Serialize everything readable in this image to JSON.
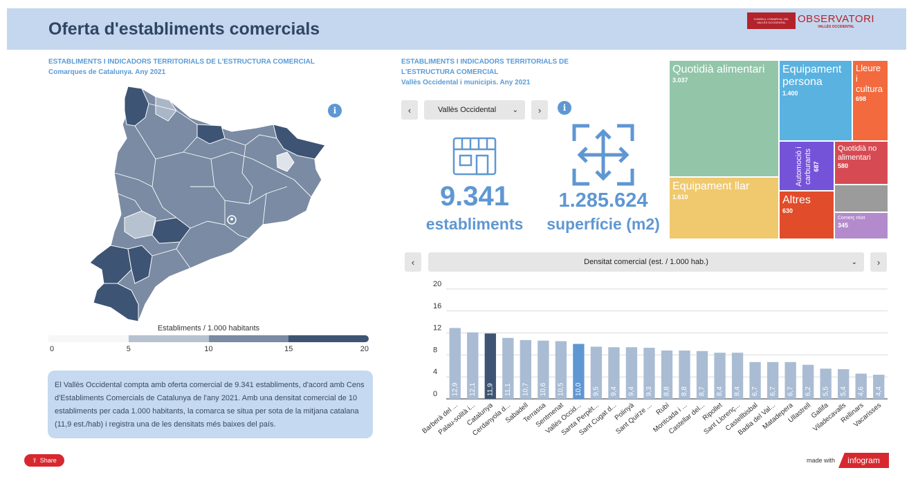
{
  "header": {
    "title": "Oferta d'establiments comercials"
  },
  "logo": {
    "box_text": "CONSELL COMARCAL DEL VALLÈS OCCIDENTAL",
    "main": "OBSERVATORI",
    "sub": "VALLÈS OCCIDENTAL"
  },
  "map_section": {
    "title_line1": "ESTABLIMENTS I INDICADORS TERRITORIALS DE L'ESTRUCTURA COMERCIAL",
    "title_line2": "Comarques de Catalunya. Any 2021",
    "info_icon": "i",
    "legend_title": "Establiments / 1.000 habitants",
    "legend_ticks": [
      "0",
      "5",
      "10",
      "15",
      "20"
    ],
    "legend_colors": [
      "#f7f7f7",
      "#b7c2d1",
      "#7a8ba3",
      "#3e5474"
    ]
  },
  "summary": {
    "text": "El Vallès Occidental compta amb oferta comercial de 9.341 establiments, d'acord amb Cens d'Establiments Comercials de Catalunya de l'any 2021. Amb una densitat comercial de 10 establiments per cada 1.000 habitants, la comarca se situa per sota de la mitjana catalana (11,9 est./hab) i registra una de les densitats més baixes del país."
  },
  "share": {
    "label": "Share"
  },
  "kpi_section": {
    "title_line1": "ESTABLIMENTS I INDICADORS TERRITORIALS DE",
    "title_line2": "L'ESTRUCTURA COMERCIAL",
    "title_line3": "Vallès Occidental i municipis. Any 2021",
    "prev_label": "‹",
    "next_label": "›",
    "selected_area": "Vallès Occidental",
    "info_icon": "i",
    "establishments_value": "9.341",
    "establishments_label": "establiments",
    "surface_value": "1.285.624",
    "surface_label": "superfície (m2)"
  },
  "treemap": [
    {
      "label": "Quotidià alimentari",
      "value": "3.037",
      "color": "#93c5a9"
    },
    {
      "label": "Equipament persona",
      "value": "1.400",
      "color": "#5ab2e0"
    },
    {
      "label": "Lleure i cultura",
      "value": "698",
      "color": "#f26a3d"
    },
    {
      "label": "Automoció i carburants",
      "value": "687",
      "color": "#7553d9"
    },
    {
      "label": "Quotidià no alimentari",
      "value": "580",
      "color": "#d64b53"
    },
    {
      "label": "Equipament llar",
      "value": "1.610",
      "color": "#f0c96e"
    },
    {
      "label": "Altres",
      "value": "630",
      "color": "#e14c2a"
    },
    {
      "label": "",
      "value": "",
      "color": "#9b9b9b"
    },
    {
      "label": "Comerç mixt",
      "value": "345",
      "color": "#b38bcc"
    }
  ],
  "chart_controls": {
    "prev_label": "‹",
    "next_label": "›",
    "selected_indicator": "Densitat comercial (est. / 1.000 hab.)"
  },
  "chart_data": {
    "type": "bar",
    "title": "",
    "ylim": [
      0,
      20
    ],
    "yticks": [
      0,
      4,
      8,
      12,
      16,
      20
    ],
    "categories": [
      "Barberà del ...",
      "Palau-solità i...",
      "Catalunya",
      "Cerdanyola d...",
      "Sabadell",
      "Terrassa",
      "Sentmenat",
      "Vallès Occid...",
      "Santa Perpèt...",
      "Sant Cugat d...",
      "Polinyà",
      "Sant Quirze ...",
      "Rubí",
      "Montcada i ...",
      "Castellar del...",
      "Ripollet",
      "Sant Llorenç...",
      "Castellbisbal",
      "Badia del Val...",
      "Matadepera",
      "Ullastrell",
      "Gallifa",
      "Viladecavalls",
      "Rellinars",
      "Vacarisses"
    ],
    "values": [
      12.9,
      12.1,
      11.9,
      11.1,
      10.7,
      10.6,
      10.5,
      10.0,
      9.5,
      9.4,
      9.4,
      9.3,
      8.8,
      8.8,
      8.7,
      8.4,
      8.4,
      6.7,
      6.7,
      6.7,
      6.2,
      5.5,
      5.4,
      4.6,
      4.4
    ],
    "labels": [
      "12,9",
      "12,1",
      "11,9",
      "11,1",
      "10,7",
      "10,6",
      "10,5",
      "10,0",
      "9,5",
      "9,4",
      "9,4",
      "9,3",
      "8,8",
      "8,8",
      "8,7",
      "8,4",
      "8,4",
      "6,7",
      "6,7",
      "6,7",
      "6,2",
      "5,5",
      "5,4",
      "4,6",
      "4,4"
    ],
    "bar_color": "#a9bcd3",
    "highlight": {
      "Catalunya": "#3e5474",
      "Vallès Occid...": "#5f97d2"
    },
    "grid": true
  },
  "footer": {
    "made_with": "made with",
    "brand": "infogram"
  }
}
